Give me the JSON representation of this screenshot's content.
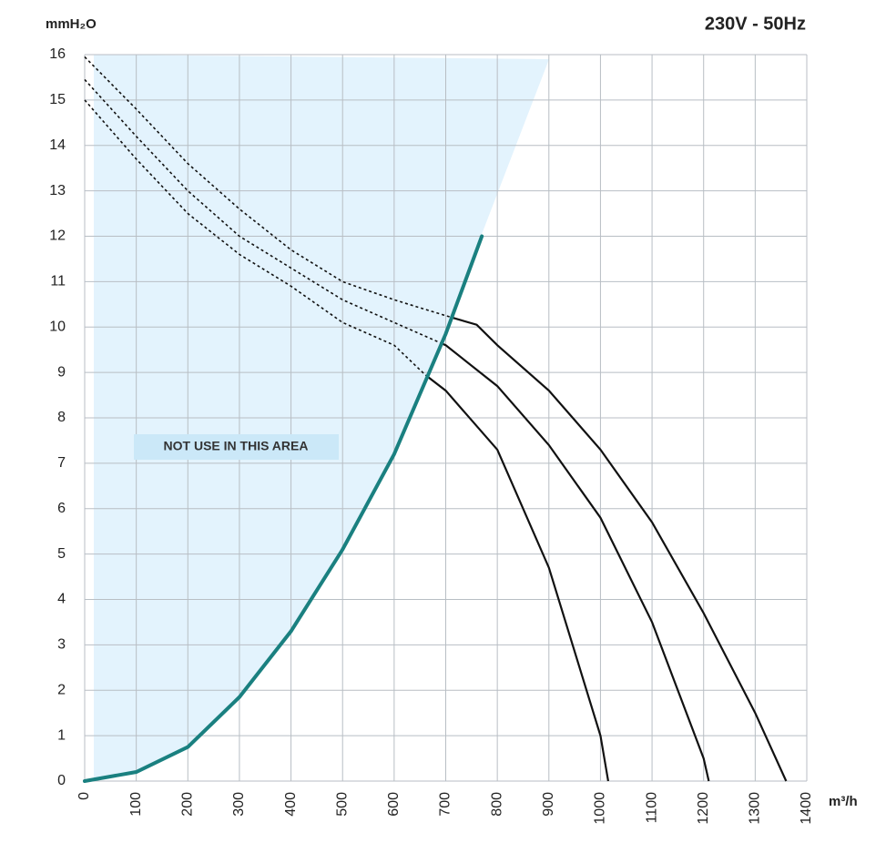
{
  "chart_data": {
    "type": "line",
    "title": "230V - 50Hz",
    "y_label": "mmH₂O",
    "x_label": "m³/h",
    "annotation": "NOT USE IN THIS AREA",
    "xlim": [
      0,
      1400
    ],
    "xticks": [
      0,
      100,
      200,
      300,
      400,
      500,
      600,
      700,
      800,
      900,
      1000,
      1100,
      1200,
      1300,
      1400
    ],
    "ylim": [
      0,
      16
    ],
    "yticks": [
      0,
      1,
      2,
      3,
      4,
      5,
      6,
      7,
      8,
      9,
      10,
      11,
      12,
      13,
      14,
      15,
      16
    ],
    "grid": true,
    "series": [
      {
        "color": "#111111",
        "x": [
          0,
          100,
          200,
          300,
          400,
          500,
          600,
          700,
          760,
          800,
          900,
          1000,
          1100,
          1200,
          1300,
          1360
        ],
        "values": [
          15.95,
          14.8,
          13.6,
          12.6,
          11.7,
          11.0,
          10.6,
          10.25,
          10.05,
          9.6,
          8.6,
          7.3,
          5.7,
          3.7,
          1.5,
          0
        ]
      },
      {
        "color": "#111111",
        "x": [
          0,
          100,
          200,
          300,
          400,
          500,
          600,
          700,
          800,
          900,
          1000,
          1100,
          1200,
          1210
        ],
        "values": [
          15.45,
          14.2,
          13.0,
          12.0,
          11.3,
          10.6,
          10.1,
          9.6,
          8.7,
          7.4,
          5.8,
          3.5,
          0.5,
          0
        ]
      },
      {
        "color": "#111111",
        "x": [
          0,
          100,
          200,
          300,
          400,
          500,
          600,
          660,
          700,
          800,
          900,
          1000,
          1015
        ],
        "values": [
          15.0,
          13.7,
          12.5,
          11.6,
          10.9,
          10.1,
          9.6,
          8.95,
          8.6,
          7.3,
          4.7,
          1.0,
          0
        ]
      },
      {
        "color": "#1a8080",
        "x": [
          0,
          50,
          100,
          200,
          300,
          400,
          500,
          600,
          700,
          770
        ],
        "values": [
          0,
          0.1,
          0.2,
          0.75,
          1.85,
          3.3,
          5.1,
          7.2,
          9.85,
          12.0
        ]
      }
    ]
  }
}
